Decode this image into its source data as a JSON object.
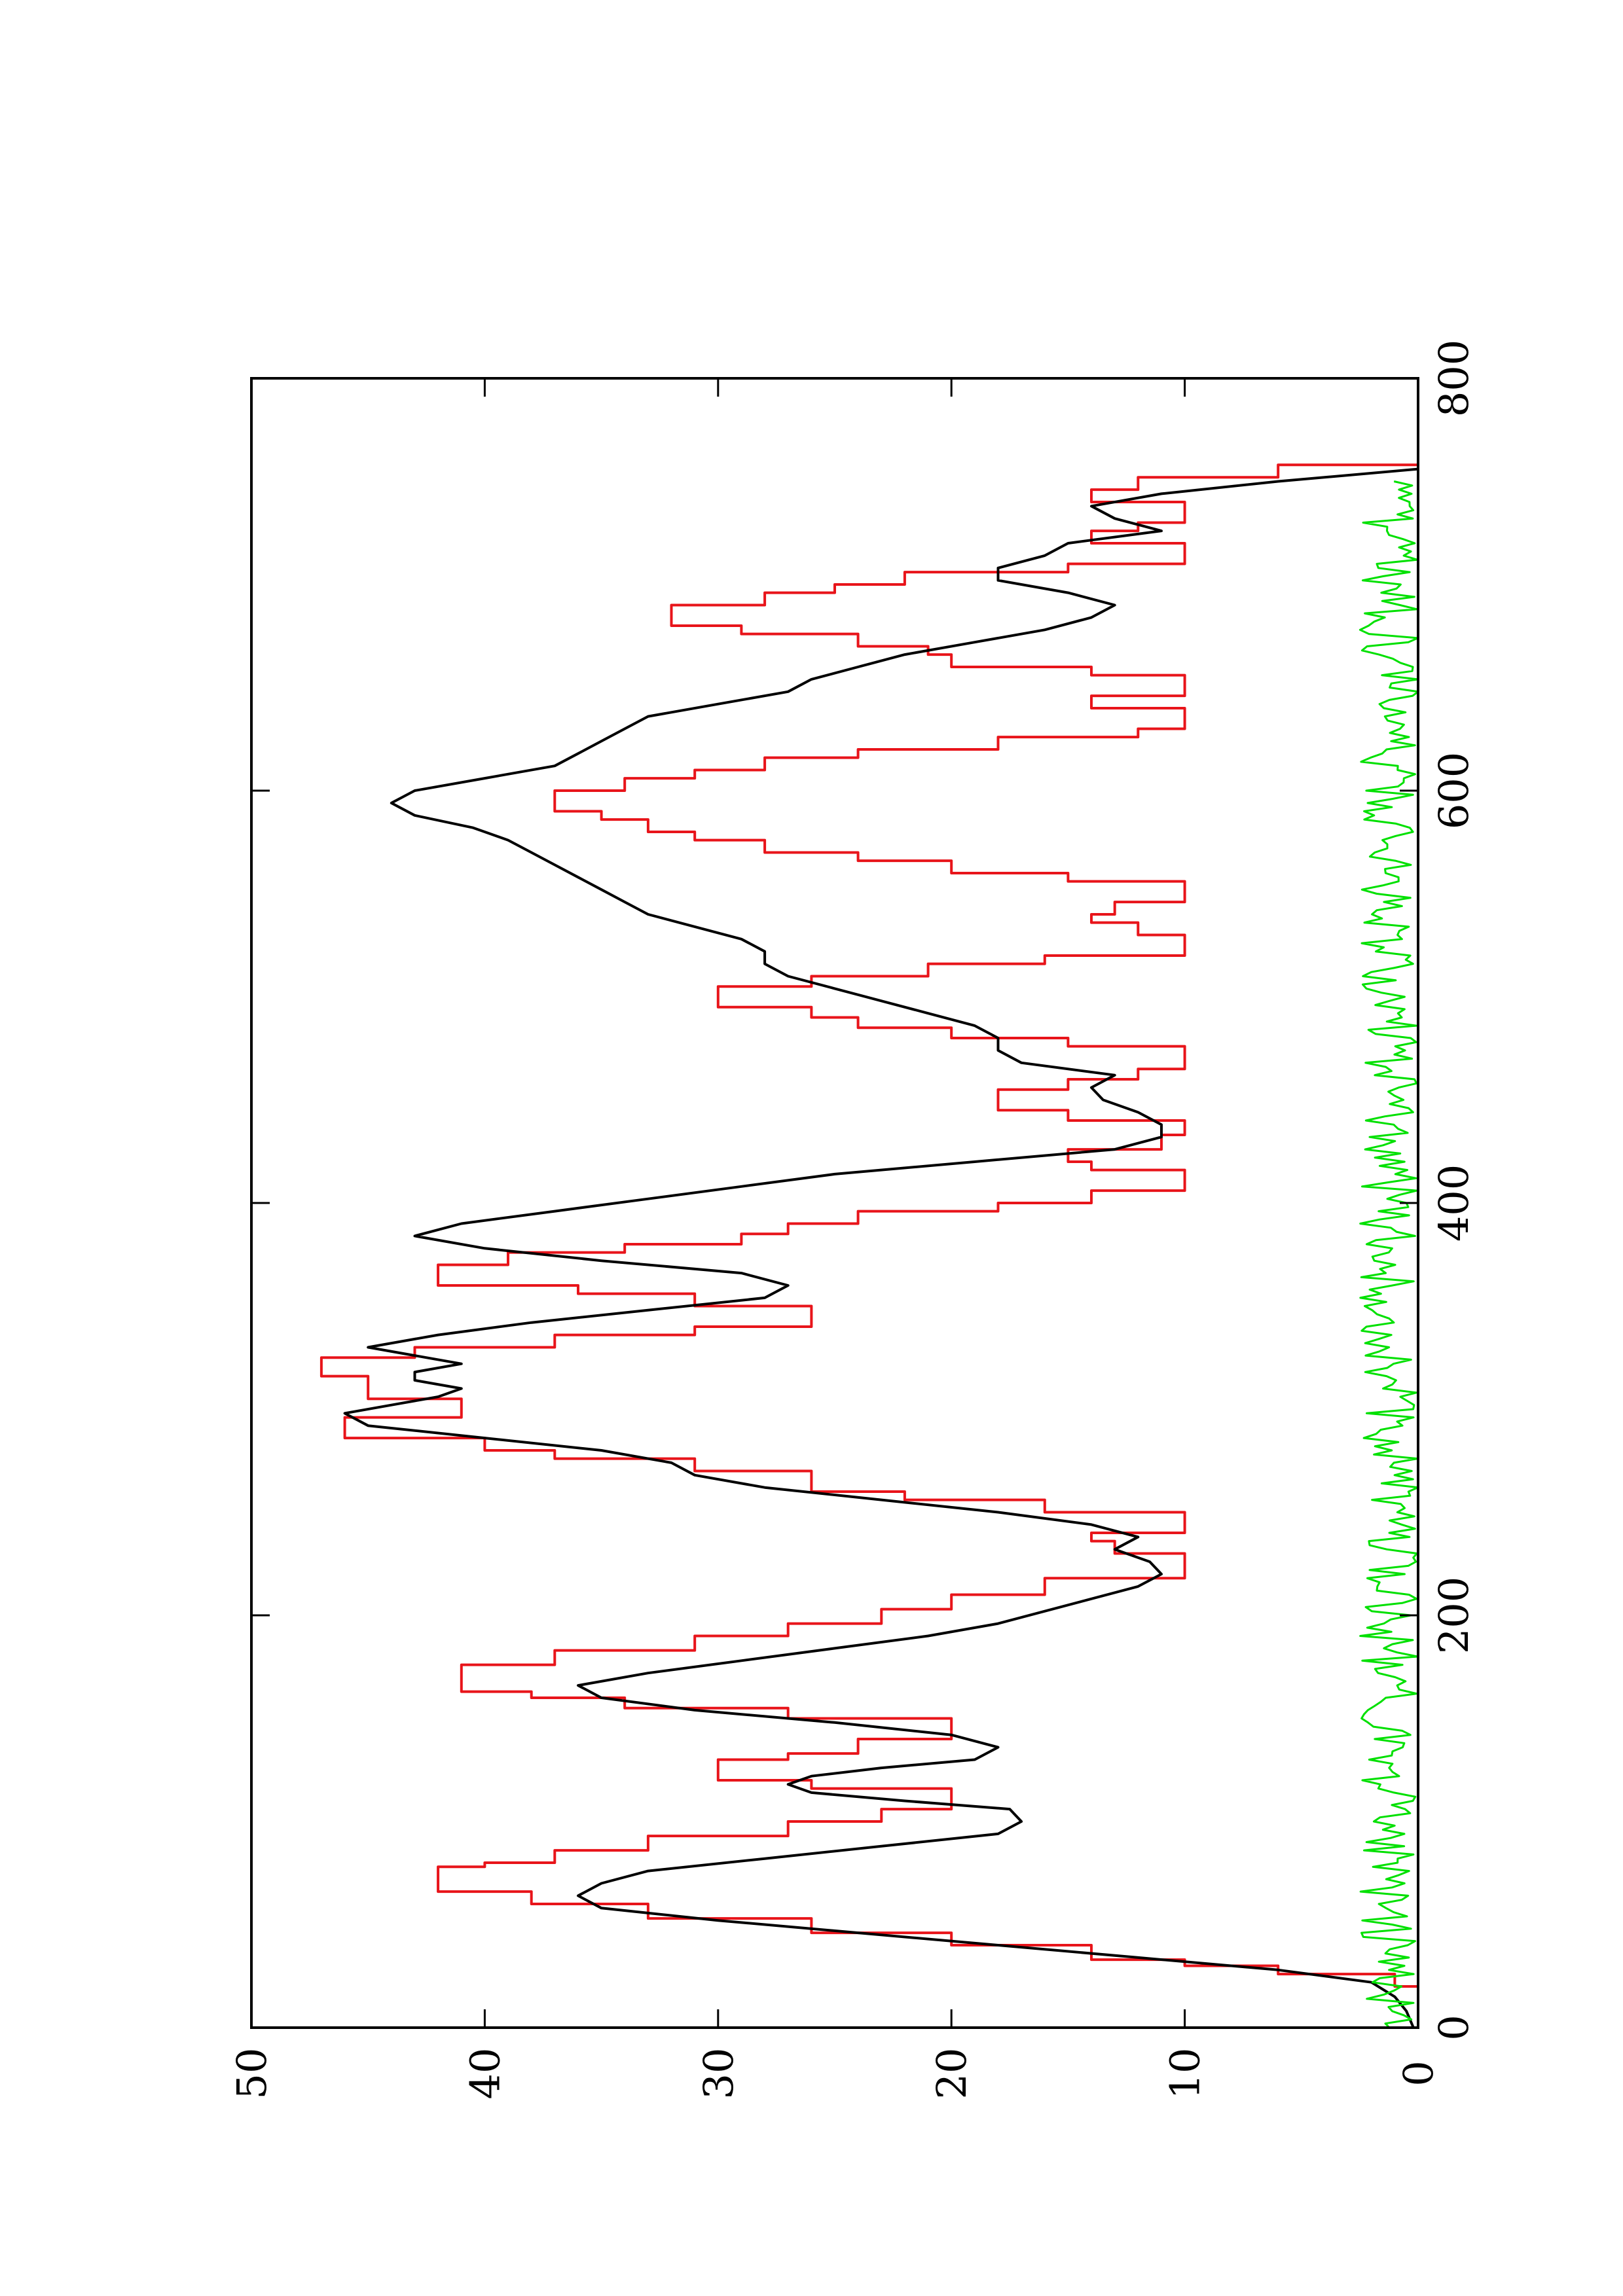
{
  "colors": {
    "background": "#ffffff",
    "axis": "#000000",
    "red": "#e8141a",
    "black": "#000000",
    "green": "#00e000"
  },
  "chart_data": {
    "type": "line",
    "orientation": "rotated 90° counter-clockwise (landscape plot printed on portrait page)",
    "title": "",
    "xlabel": "",
    "ylabel": "",
    "xlim": [
      0,
      800
    ],
    "ylim": [
      0,
      50
    ],
    "grid": false,
    "x_ticks": [
      0,
      200,
      400,
      600,
      800
    ],
    "x_tick_labels": [
      "0",
      "200",
      "400",
      "600",
      "800"
    ],
    "y_ticks": [
      0,
      10,
      20,
      30,
      40,
      50
    ],
    "y_tick_labels": [
      "0",
      "10",
      "20",
      "30",
      "40",
      "50"
    ],
    "series": [
      {
        "key": "red",
        "color": "#e8141a",
        "style": "step",
        "x": [
          0,
          10,
          20,
          26,
          30,
          33,
          40,
          46,
          53,
          60,
          66,
          72,
          78,
          80,
          86,
          93,
          100,
          106,
          112,
          116,
          120,
          126,
          130,
          133,
          140,
          145,
          150,
          155,
          160,
          163,
          170,
          176,
          183,
          190,
          196,
          203,
          210,
          218,
          226,
          230,
          236,
          240,
          246,
          250,
          256,
          260,
          266,
          270,
          276,
          280,
          286,
          290,
          296,
          300,
          305,
          310,
          316,
          320,
          325,
          330,
          336,
          340,
          345,
          350,
          356,
          360,
          366,
          370,
          376,
          380,
          385,
          390,
          396,
          400,
          406,
          410,
          416,
          420,
          426,
          433,
          440,
          445,
          450,
          455,
          460,
          465,
          470,
          476,
          480,
          485,
          490,
          495,
          500,
          505,
          510,
          516,
          520,
          525,
          530,
          536,
          540,
          546,
          550,
          556,
          560,
          566,
          570,
          576,
          580,
          586,
          590,
          596,
          600,
          606,
          610,
          616,
          620,
          626,
          630,
          636,
          640,
          646,
          650,
          656,
          660,
          666,
          670,
          676,
          680,
          686,
          690,
          696,
          700,
          706,
          710,
          716,
          720,
          726,
          730,
          736,
          740,
          746,
          752,
          758
        ],
        "y": [
          0,
          0,
          1,
          6,
          10,
          14,
          20,
          26,
          33,
          38,
          42,
          42,
          40,
          37,
          33,
          27,
          23,
          20,
          20,
          26,
          30,
          30,
          27,
          24,
          20,
          20,
          27,
          34,
          38,
          41,
          41,
          37,
          31,
          27,
          23,
          20,
          16,
          10,
          10,
          13,
          14,
          10,
          10,
          16,
          22,
          26,
          26,
          31,
          37,
          40,
          46,
          46,
          41,
          41,
          45,
          45,
          47,
          47,
          43,
          37,
          31,
          26,
          26,
          31,
          36,
          42,
          42,
          39,
          34,
          29,
          27,
          24,
          18,
          14,
          10,
          10,
          14,
          15,
          11,
          10,
          15,
          18,
          18,
          15,
          12,
          10,
          10,
          15,
          20,
          24,
          26,
          30,
          30,
          26,
          21,
          16,
          10,
          10,
          12,
          14,
          13,
          10,
          10,
          15,
          20,
          24,
          28,
          31,
          33,
          35,
          37,
          37,
          34,
          31,
          28,
          24,
          18,
          12,
          10,
          10,
          14,
          10,
          10,
          14,
          20,
          21,
          24,
          29,
          32,
          32,
          28,
          25,
          22,
          15,
          10,
          10,
          14,
          12,
          10,
          10,
          14,
          12,
          6,
          0
        ]
      },
      {
        "key": "black",
        "color": "#000000",
        "style": "line",
        "x": [
          0,
          8,
          15,
          22,
          28,
          34,
          40,
          46,
          52,
          58,
          64,
          70,
          76,
          82,
          88,
          94,
          100,
          106,
          110,
          114,
          118,
          122,
          126,
          130,
          136,
          142,
          148,
          154,
          160,
          166,
          172,
          178,
          184,
          190,
          196,
          202,
          208,
          214,
          220,
          226,
          232,
          238,
          244,
          250,
          256,
          262,
          268,
          274,
          280,
          286,
          292,
          298,
          302,
          306,
          310,
          314,
          318,
          322,
          326,
          330,
          336,
          342,
          348,
          354,
          360,
          366,
          372,
          378,
          384,
          390,
          396,
          402,
          408,
          414,
          420,
          426,
          432,
          438,
          444,
          450,
          456,
          462,
          468,
          474,
          480,
          486,
          492,
          498,
          504,
          510,
          516,
          522,
          528,
          534,
          540,
          546,
          552,
          558,
          564,
          570,
          576,
          582,
          588,
          594,
          600,
          606,
          612,
          618,
          624,
          630,
          636,
          642,
          648,
          654,
          660,
          666,
          672,
          678,
          684,
          690,
          696,
          702,
          708,
          714,
          720,
          726,
          732,
          738,
          744,
          750,
          756
        ],
        "y": [
          0.2,
          0.5,
          1,
          2,
          6,
          12,
          18,
          24,
          30,
          35,
          36,
          35,
          33,
          28,
          23,
          18,
          17,
          17.5,
          22,
          26,
          27,
          26,
          23,
          19,
          18,
          20,
          25,
          31,
          35,
          36,
          33,
          29,
          25,
          21,
          18,
          16,
          14,
          12,
          11,
          11.5,
          13,
          12,
          14,
          18,
          23,
          28,
          31,
          32,
          35,
          40,
          45,
          46,
          44,
          42,
          41,
          43,
          43,
          41,
          43,
          45,
          42,
          38,
          33,
          28,
          27,
          29,
          35,
          40,
          43,
          41,
          37,
          33,
          29,
          25,
          19,
          13,
          11,
          11,
          12,
          13.5,
          14,
          13,
          17,
          18,
          18,
          19,
          21,
          23,
          25,
          27,
          28,
          28,
          29,
          31,
          33,
          34,
          35,
          36,
          37,
          38,
          39,
          40.5,
          43,
          44,
          43,
          40,
          37,
          36,
          35,
          34,
          33,
          30,
          27,
          26,
          24,
          22,
          19,
          16,
          14,
          13,
          15,
          18,
          18,
          16,
          15,
          11,
          13,
          14,
          11,
          6,
          0
        ]
      },
      {
        "key": "green",
        "color": "#00e000",
        "style": "noise",
        "x_start": 0,
        "x_end": 750,
        "x_step": 2,
        "baseline": 0,
        "amplitude": 2.5
      }
    ]
  }
}
